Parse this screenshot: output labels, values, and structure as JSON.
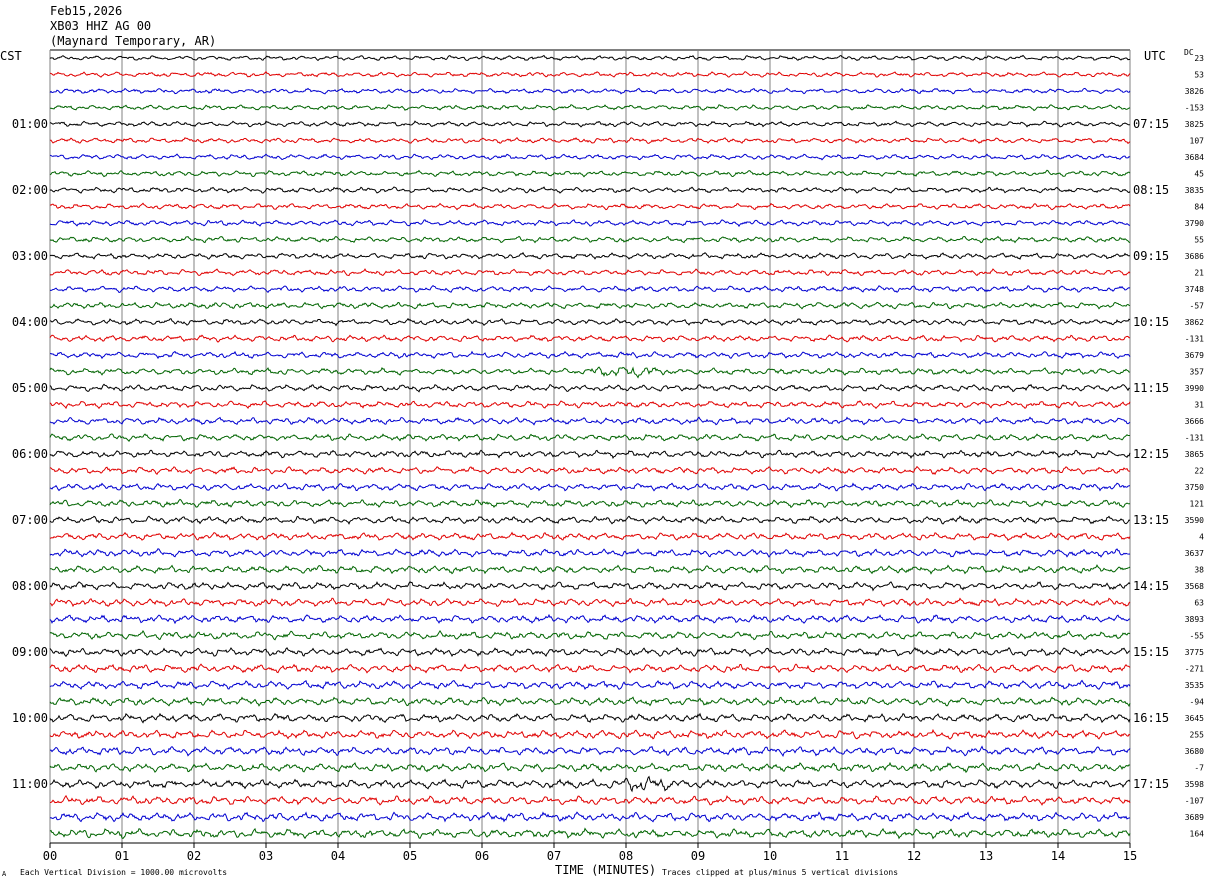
{
  "header": {
    "date": "Feb15,2026",
    "station": "XB03 HHZ AG 00",
    "location": "(Maynard Temporary, AR)"
  },
  "tz_left": "CST",
  "tz_right": "UTC",
  "dc_label": "DC",
  "footer": {
    "x_title": "TIME (MINUTES)",
    "note_left": "Each Vertical Division = 1000.00 microvolts",
    "note_right": "Traces clipped at plus/minus 5 vertical divisions",
    "corner_mark": "A"
  },
  "colors": {
    "black": "#000000",
    "red": "#e00000",
    "blue": "#0000d0",
    "green": "#006400",
    "grid": "#808080"
  },
  "chart_data": {
    "type": "line",
    "title": "XB03 HHZ AG 00",
    "xlabel": "TIME (MINUTES)",
    "x_ticks": [
      "00",
      "01",
      "02",
      "03",
      "04",
      "05",
      "06",
      "07",
      "08",
      "09",
      "10",
      "11",
      "12",
      "13",
      "14",
      "15"
    ],
    "xlim": [
      0,
      15
    ],
    "rows_per_hour": 4,
    "trace_colors": [
      "black",
      "red",
      "blue",
      "green"
    ],
    "left_hour_labels": [
      "01:00",
      "02:00",
      "03:00",
      "04:00",
      "05:00",
      "06:00",
      "07:00",
      "08:00",
      "09:00",
      "10:00",
      "11:00"
    ],
    "right_hour_labels": [
      "07:15",
      "08:15",
      "09:15",
      "10:15",
      "11:15",
      "12:15",
      "13:15",
      "14:15",
      "15:15",
      "16:15",
      "17:15"
    ],
    "dc_offsets": [
      "23",
      "53",
      "3826",
      "-153",
      "3825",
      "107",
      "3684",
      "45",
      "3835",
      "84",
      "3790",
      "55",
      "3686",
      "21",
      "3748",
      "-57",
      "3862",
      "-131",
      "3679",
      "357",
      "3990",
      "31",
      "3666",
      "-131",
      "3865",
      "22",
      "3750",
      "121",
      "3590",
      "4",
      "3637",
      "38",
      "3568",
      "63",
      "3893",
      "-55",
      "3775",
      "-271",
      "3535",
      "-94",
      "3645",
      "255",
      "3680",
      "-7",
      "3598",
      "-107",
      "3689",
      "164"
    ],
    "amplitude_scale": "1000.00 microvolts per vertical division",
    "clip": "plus/minus 5 vertical divisions",
    "events": [
      {
        "row": 19,
        "x_minutes": 8.0,
        "note": "burst"
      },
      {
        "row": 44,
        "x_minutes": 8.2,
        "note": "burst"
      }
    ]
  }
}
